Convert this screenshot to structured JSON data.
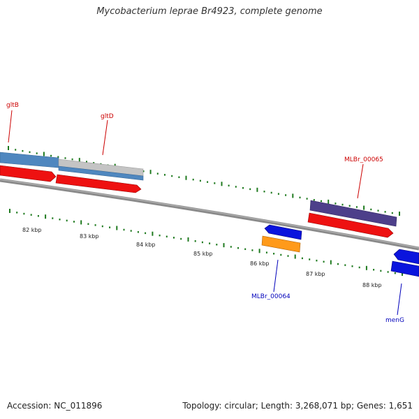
{
  "title": "Mycobacterium leprae Br4923, complete genome",
  "footer": {
    "accession": "Accession: NC_011896",
    "summary": "Topology: circular; Length: 3,268,071 bp; Genes: 1,651"
  },
  "colors": {
    "backbone": "#8a8a8a",
    "minor_tick": "#1f7a1f",
    "forward_label": "#cc0000",
    "reverse_label": "#0000bb",
    "cds_red": "#ee1111",
    "cds_blue": "#0a14dd",
    "cds_orange": "#ff9a1a",
    "feature_steelblue": "#4f87bf",
    "feature_grey": "#c4c4c4",
    "feature_purple": "#4d3f8a"
  },
  "tick_labels": [
    {
      "id": "82",
      "text": "82 kbp"
    },
    {
      "id": "83",
      "text": "83 kbp"
    },
    {
      "id": "84",
      "text": "84 kbp"
    },
    {
      "id": "85",
      "text": "85 kbp"
    },
    {
      "id": "86",
      "text": "86 kbp"
    },
    {
      "id": "87",
      "text": "87 kbp"
    },
    {
      "id": "88",
      "text": "88 kbp"
    }
  ],
  "gene_labels": [
    {
      "id": "gltB",
      "text": "gltB",
      "strand": "forward"
    },
    {
      "id": "gltD",
      "text": "gltD",
      "strand": "forward"
    },
    {
      "id": "MLBr_00065",
      "text": "MLBr_00065",
      "strand": "forward"
    },
    {
      "id": "MLBr_00064",
      "text": "MLBr_00064",
      "strand": "reverse"
    },
    {
      "id": "menG",
      "text": "menG",
      "strand": "reverse"
    }
  ]
}
